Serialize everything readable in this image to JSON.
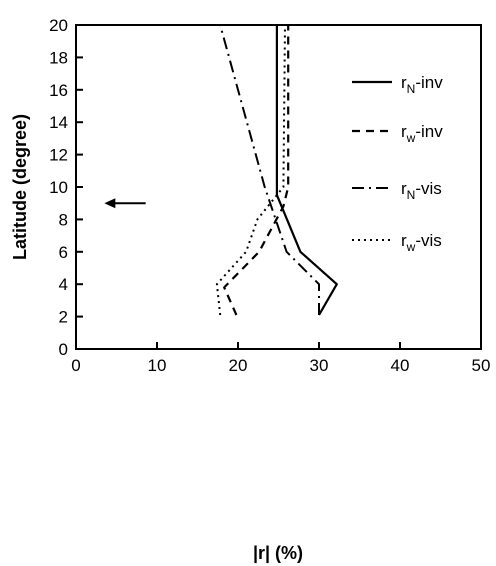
{
  "chart_data": {
    "type": "line",
    "xlabel": "|r| (%)",
    "ylabel": "Latitude (degree)",
    "xlim": [
      0,
      50
    ],
    "ylim": [
      0,
      20
    ],
    "xticks": [
      0,
      10,
      20,
      30,
      40,
      50
    ],
    "yticks": [
      0,
      2,
      4,
      6,
      8,
      10,
      12,
      14,
      16,
      18,
      20
    ],
    "grid": false,
    "legend_position": "top-right",
    "series": [
      {
        "name": "rN-inv",
        "label_main": "r",
        "label_sub": "N",
        "label_suffix": "-inv",
        "style": "solid",
        "x": [
          30.0,
          32.2,
          27.7,
          24.8,
          24.8
        ],
        "y": [
          2.1,
          4.0,
          6.0,
          9.5,
          20.0
        ]
      },
      {
        "name": "rw-inv",
        "label_main": "r",
        "label_sub": "w",
        "label_suffix": "-inv",
        "style": "dashed",
        "x": [
          19.8,
          18.3,
          22.6,
          25.6,
          26.2,
          26.2
        ],
        "y": [
          2.1,
          3.8,
          6.0,
          8.8,
          10.0,
          20.0
        ]
      },
      {
        "name": "rN-vis",
        "label_main": "r",
        "label_sub": "N",
        "label_suffix": "-vis",
        "style": "dashdot",
        "x": [
          30.0,
          30.0,
          26.0,
          23.3,
          17.8
        ],
        "y": [
          2.1,
          4.0,
          6.0,
          10.0,
          20.0
        ]
      },
      {
        "name": "rw-vis",
        "label_main": "r",
        "label_sub": "w",
        "label_suffix": "-vis",
        "style": "dotted",
        "x": [
          17.8,
          17.4,
          21.0,
          22.4,
          25.6,
          25.8
        ],
        "y": [
          2.1,
          4.0,
          6.0,
          8.0,
          10.0,
          20.0
        ]
      }
    ],
    "annotations": [
      {
        "type": "arrow",
        "direction": "left",
        "x_start": 8.6,
        "x_end": 3.5,
        "y": 9.0
      }
    ]
  }
}
